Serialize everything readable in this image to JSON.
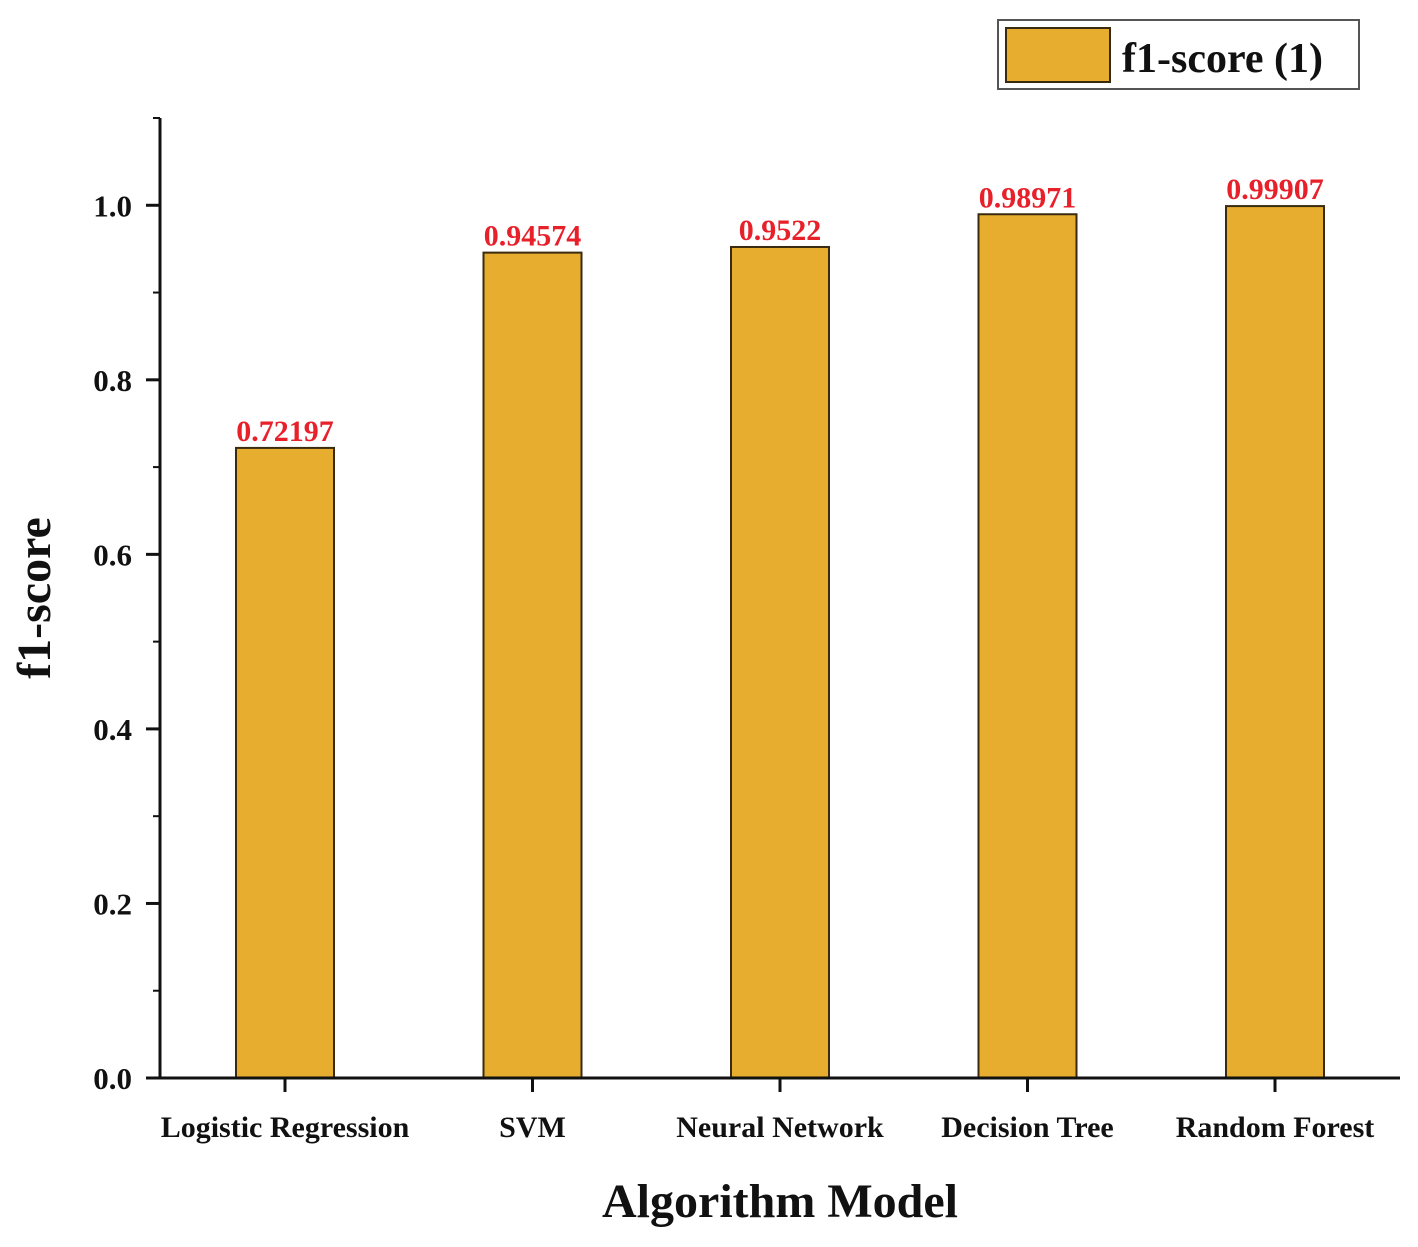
{
  "chart_data": {
    "type": "bar",
    "categories": [
      "Logistic Regression",
      "SVM",
      "Neural Network",
      "Decision Tree",
      "Random Forest"
    ],
    "series": [
      {
        "name": "f1-score (1)",
        "values": [
          0.72197,
          0.94574,
          0.9522,
          0.98971,
          0.99907
        ],
        "labels": [
          "0.72197",
          "0.94574",
          "0.9522",
          "0.98971",
          "0.99907"
        ]
      }
    ],
    "title": "",
    "xlabel": "Algorithm Model",
    "ylabel": "f1-score",
    "ylim": [
      0,
      1.1
    ],
    "yticks": [
      0.0,
      0.2,
      0.4,
      0.6,
      0.8,
      1.0
    ],
    "ytick_labels": [
      "0.0",
      "0.2",
      "0.4",
      "0.6",
      "0.8",
      "1.0"
    ],
    "grid": false,
    "legend_position": "top-right",
    "colors": {
      "bar_fill": "#E6AD2E",
      "bar_stroke": "#3a2a10",
      "data_label": "#E8202A",
      "axis": "#111111"
    }
  }
}
